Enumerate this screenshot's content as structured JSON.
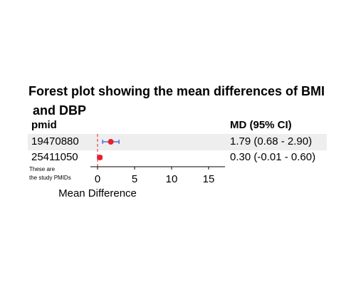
{
  "title_line1": "Forest plot showing the mean differences of BMI",
  "title_line2": "and DBP",
  "header": {
    "pmid": "pmid",
    "md": "MD (95% CI)"
  },
  "rows": [
    {
      "pmid": "19470880",
      "md_text": "1.79 (0.68 - 2.90)"
    },
    {
      "pmid": "25411050",
      "md_text": "0.30 (-0.01 - 0.60)"
    }
  ],
  "note": {
    "line1": "These are",
    "line2": "the study PMIDs"
  },
  "colors": {
    "point": "#e8202a",
    "ci": "#3a4fd8",
    "zero_line": "#e8202a",
    "row_shade": "#eeeeee"
  },
  "chart_data": {
    "type": "forest",
    "xlabel": "Mean Difference",
    "xlim": [
      -0.2,
      17
    ],
    "xticks": [
      0,
      5,
      10,
      15
    ],
    "reference_line": 0,
    "studies": [
      {
        "pmid": "19470880",
        "md": 1.79,
        "ci_low": 0.68,
        "ci_high": 2.9
      },
      {
        "pmid": "25411050",
        "md": 0.3,
        "ci_low": -0.01,
        "ci_high": 0.6
      }
    ]
  }
}
